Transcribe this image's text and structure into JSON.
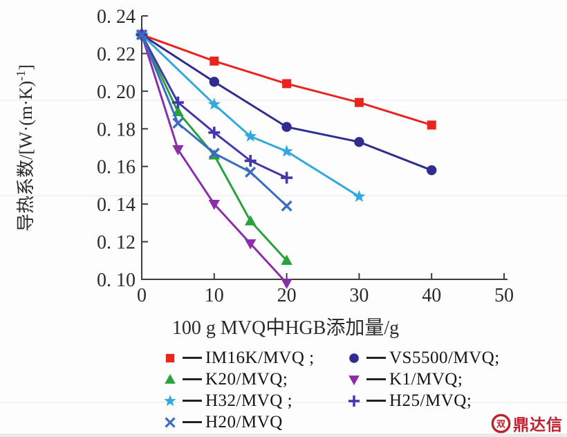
{
  "chart_data": {
    "type": "line",
    "title": "",
    "xlabel": "100 g MVQ中HGB添加量/g",
    "ylabel": "导热系数/[W·(m·K)⁻¹]",
    "ylabel_parts": {
      "pre": "导热系数/[W·(m·K)",
      "sup": "-1",
      "post": "]"
    },
    "xlim": [
      0,
      50
    ],
    "ylim": [
      0.1,
      0.24
    ],
    "xticks": [
      0,
      10,
      20,
      30,
      40,
      50
    ],
    "xtick_labels": [
      "0",
      "10",
      "20",
      "30",
      "40",
      "50"
    ],
    "yticks": [
      0.1,
      0.12,
      0.14,
      0.16,
      0.18,
      0.2,
      0.22,
      0.24
    ],
    "ytick_labels": [
      "0. 10",
      "0. 12",
      "0. 14",
      "0. 16",
      "0. 18",
      "0. 20",
      "0. 22",
      "0. 24"
    ],
    "grid": false,
    "legend_position": "below-chart",
    "axis_color": "#3c3c3c",
    "text_color": "#2b2b2b",
    "series": [
      {
        "name": "IM16K/MVQ",
        "marker": "square",
        "color": "#e8241f",
        "points": [
          [
            0,
            0.23
          ],
          [
            10,
            0.216
          ],
          [
            20,
            0.204
          ],
          [
            30,
            0.194
          ],
          [
            40,
            0.182
          ]
        ]
      },
      {
        "name": "VS5500/MVQ",
        "marker": "circle",
        "color": "#2f2e90",
        "points": [
          [
            0,
            0.23
          ],
          [
            10,
            0.205
          ],
          [
            20,
            0.181
          ],
          [
            30,
            0.173
          ],
          [
            40,
            0.158
          ]
        ]
      },
      {
        "name": "K20/MVQ",
        "marker": "triangle-up",
        "color": "#29a13e",
        "points": [
          [
            0,
            0.23
          ],
          [
            5,
            0.189
          ],
          [
            10,
            0.166
          ],
          [
            15,
            0.131
          ],
          [
            20,
            0.11
          ]
        ]
      },
      {
        "name": "K1/MVQ",
        "marker": "triangle-down",
        "color": "#8b2fa8",
        "points": [
          [
            0,
            0.23
          ],
          [
            5,
            0.169
          ],
          [
            10,
            0.14
          ],
          [
            15,
            0.119
          ],
          [
            20,
            0.098
          ]
        ]
      },
      {
        "name": "H32/MVQ",
        "marker": "star",
        "color": "#33a8dc",
        "points": [
          [
            0,
            0.23
          ],
          [
            10,
            0.193
          ],
          [
            15,
            0.176
          ],
          [
            20,
            0.168
          ],
          [
            30,
            0.144
          ]
        ]
      },
      {
        "name": "H25/MVQ",
        "marker": "plus",
        "color": "#4237ab",
        "points": [
          [
            0,
            0.23
          ],
          [
            5,
            0.194
          ],
          [
            10,
            0.178
          ],
          [
            15,
            0.163
          ],
          [
            20,
            0.154
          ]
        ]
      },
      {
        "name": "H20/MVQ",
        "marker": "x",
        "color": "#3b6cc0",
        "points": [
          [
            0,
            0.23
          ],
          [
            5,
            0.183
          ],
          [
            10,
            0.167
          ],
          [
            15,
            0.157
          ],
          [
            20,
            0.139
          ]
        ]
      }
    ]
  },
  "legend": {
    "items": [
      {
        "series": 0,
        "label": "IM16K/MVQ ;"
      },
      {
        "series": 1,
        "label": "VS5500/MVQ;"
      },
      {
        "series": 2,
        "label": "K20/MVQ;"
      },
      {
        "series": 3,
        "label": "K1/MVQ;"
      },
      {
        "series": 4,
        "label": "H32/MVQ ;"
      },
      {
        "series": 5,
        "label": "H25/MVQ;"
      },
      {
        "series": 6,
        "label": "H20/MVQ"
      }
    ]
  },
  "logo": {
    "text": "鼎达信",
    "icon_glyph": "双",
    "color": "#c1202e"
  }
}
